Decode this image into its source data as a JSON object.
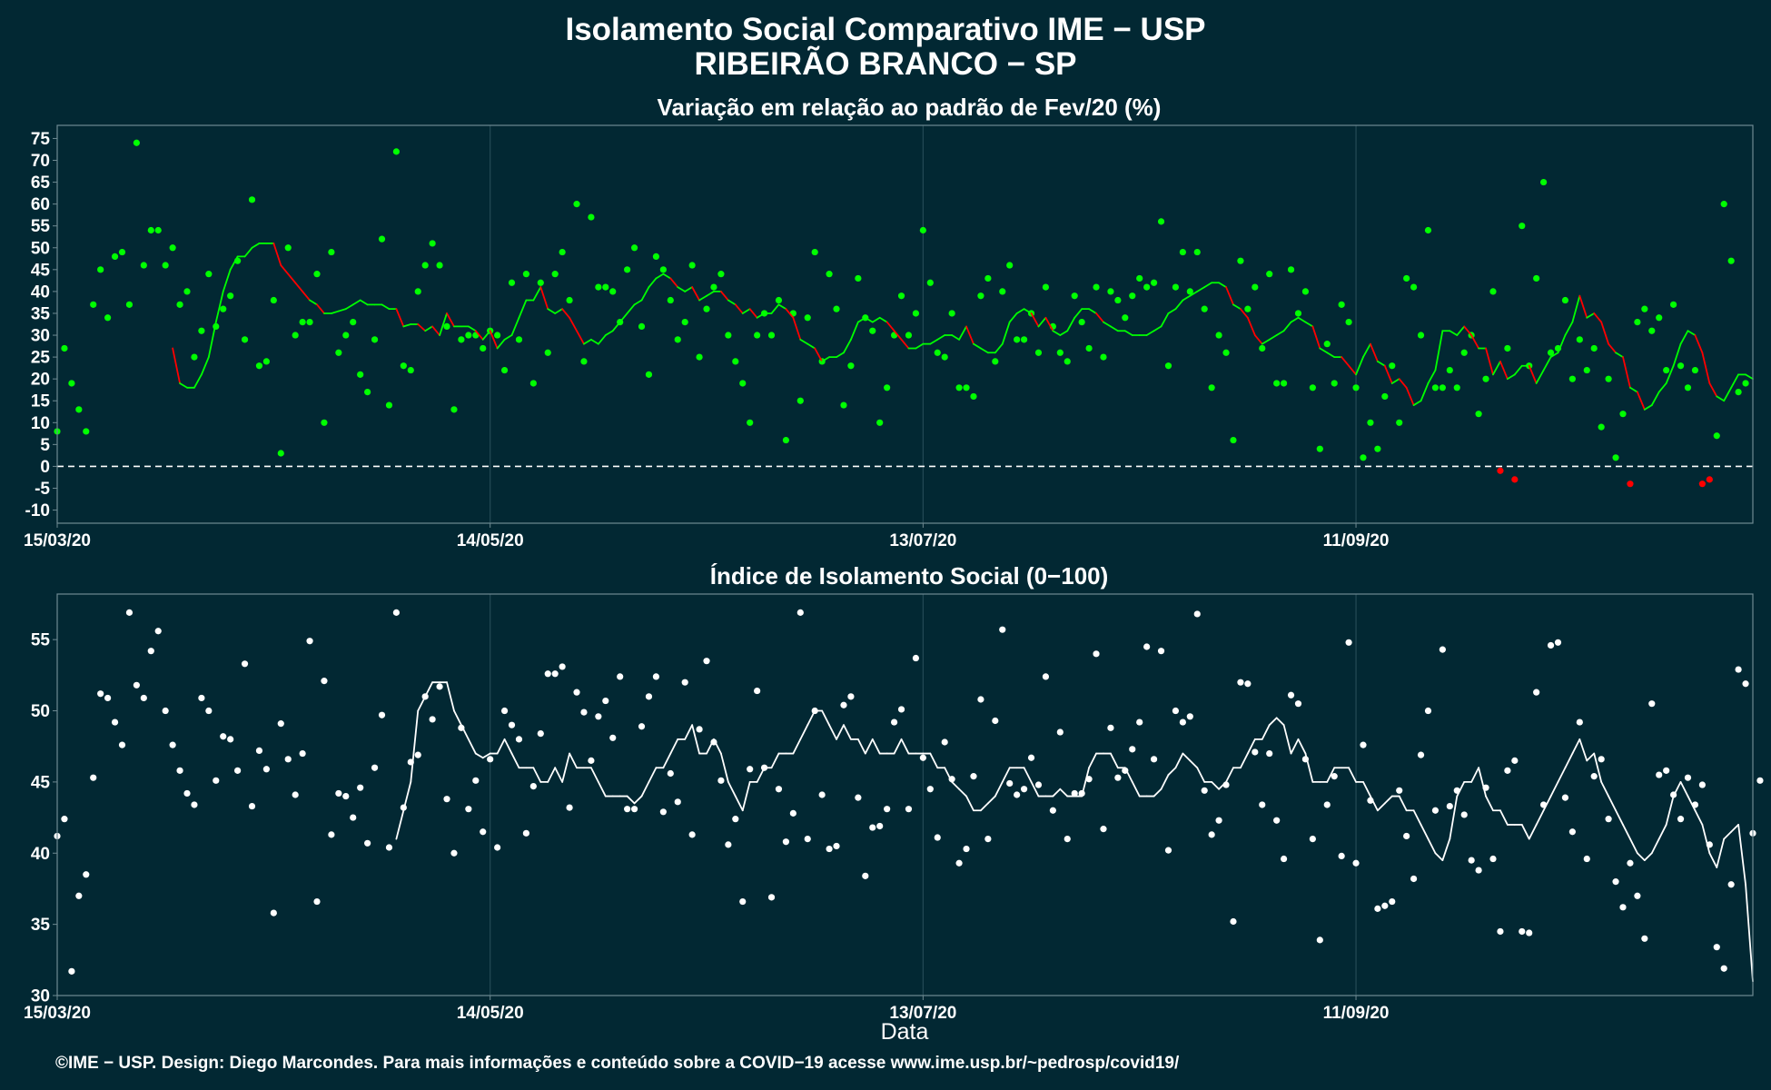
{
  "title_line1": "Isolamento Social Comparativo IME − USP",
  "title_line2": "RIBEIRÃO BRANCO − SP",
  "footer": "©IME − USP. Design: Diego Marcondes. Para mais informações e conteúdo sobre a COVID−19 acesse www.ime.usp.br/~pedrosp/covid19/",
  "colors": {
    "background": "#022833",
    "panel_border": "#6f8a92",
    "grid": "#244a55",
    "positive": "#00ff00",
    "negative": "#ff0000",
    "index_series": "#ffffff"
  },
  "chart_data": [
    {
      "type": "scatter",
      "title": "Variação em relação ao padrão de Fev/20 (%)",
      "xlabel": "",
      "ylabel": "",
      "x_start": "2020-03-15",
      "x_end": "2020-11-05",
      "x_ticks": [
        "15/03/20",
        "14/05/20",
        "13/07/20",
        "11/09/20"
      ],
      "y_ticks": [
        75,
        70,
        65,
        60,
        55,
        50,
        45,
        40,
        35,
        30,
        25,
        20,
        15,
        10,
        5,
        0,
        -5,
        -10
      ],
      "ylim": [
        -13,
        78
      ],
      "reference_line": 0,
      "grid": "vertical only",
      "series": [
        {
          "values": [
            8,
            27,
            19,
            13,
            8,
            37,
            45,
            34,
            48,
            49,
            37,
            74,
            46,
            54,
            54,
            46,
            50,
            37,
            40,
            25,
            31,
            44,
            32,
            36,
            39,
            47,
            29,
            61,
            23,
            24,
            38,
            3,
            50,
            30,
            33,
            33,
            44,
            10,
            49,
            26,
            30,
            33,
            21,
            17,
            29,
            52,
            14,
            72,
            23,
            22,
            40,
            46,
            51,
            46,
            32,
            13,
            29,
            30,
            30,
            27,
            31,
            30,
            22,
            42,
            29,
            44,
            19,
            42,
            26,
            44,
            49,
            38,
            60,
            24,
            57,
            41,
            41,
            40,
            33,
            45,
            50,
            32,
            21,
            48,
            45,
            38,
            29,
            33,
            46,
            25,
            36,
            41,
            44,
            30,
            24,
            19,
            10,
            30,
            35,
            30,
            38,
            6,
            35,
            15,
            34,
            49,
            24,
            44,
            36,
            14,
            23,
            43,
            34,
            31,
            10,
            18,
            30,
            39,
            30,
            35,
            54,
            42,
            26,
            25,
            35,
            18,
            18,
            16,
            39,
            43,
            24,
            40,
            46,
            29,
            29,
            35,
            26,
            41,
            32,
            26,
            24,
            39,
            33,
            27,
            41,
            25,
            40,
            38,
            34,
            39,
            43,
            41,
            42,
            56,
            23,
            41,
            49,
            40,
            49,
            36,
            18,
            30,
            26,
            6,
            47,
            36,
            41,
            27,
            44,
            19,
            19,
            45,
            35,
            40,
            18,
            4,
            28,
            19,
            37,
            33,
            18,
            2,
            10,
            4,
            16,
            23,
            10,
            43,
            41,
            30,
            54,
            18,
            18,
            22,
            18,
            26,
            30,
            12,
            20,
            40,
            -1,
            27,
            -3,
            55,
            23,
            43,
            65,
            26,
            27,
            38,
            20,
            29,
            22,
            27,
            9,
            20,
            2,
            12,
            -4,
            33,
            36,
            31,
            34,
            22,
            37,
            23,
            18,
            22,
            -4,
            -3,
            7,
            60,
            47,
            17,
            19
          ],
          "moving_average": [
            27,
            19,
            18,
            18,
            21,
            25,
            33,
            40,
            45,
            48,
            48,
            50,
            51,
            51,
            51,
            46,
            44,
            42,
            40,
            38,
            37,
            35,
            35,
            35.5,
            36,
            37,
            38,
            37,
            37,
            37,
            36,
            36,
            32,
            32.5,
            32.5,
            31,
            32,
            30,
            35,
            32,
            32,
            32,
            31,
            29,
            31,
            27,
            29,
            30,
            34,
            38,
            38,
            41,
            36,
            35,
            36,
            34,
            31,
            28,
            29,
            28,
            30,
            31,
            33,
            35,
            37,
            38,
            41,
            43,
            44,
            43,
            41,
            40,
            41,
            38,
            39,
            40,
            40,
            38,
            37,
            35,
            36,
            34,
            35,
            35,
            37,
            36,
            34,
            29,
            28,
            27,
            24,
            25,
            25,
            26,
            29,
            33,
            34,
            33,
            34,
            33,
            31,
            29,
            27,
            27,
            28,
            28,
            29,
            30,
            30,
            29,
            32,
            28,
            27,
            26,
            26,
            28,
            33,
            35,
            36,
            35,
            32,
            34,
            31,
            30,
            31,
            34,
            36,
            36,
            35,
            33,
            32,
            31,
            31,
            30,
            30,
            30,
            31,
            32,
            35,
            36,
            38,
            39,
            40,
            41,
            42,
            42,
            41,
            37,
            36,
            34,
            30,
            28,
            29,
            30,
            31,
            33,
            34,
            33,
            32,
            27,
            26,
            25,
            25,
            23,
            21,
            25,
            28,
            24,
            23,
            19,
            20,
            18,
            14,
            15,
            19,
            22,
            31,
            31,
            30,
            32,
            30,
            27,
            27,
            21,
            24,
            20,
            21,
            23,
            23,
            19,
            22,
            25,
            26,
            30,
            33,
            39,
            34,
            35,
            33,
            28,
            26,
            25,
            18,
            17,
            13,
            14,
            17,
            19,
            23,
            28,
            31,
            30,
            26,
            19,
            16,
            15,
            18,
            21,
            21,
            20
          ]
        }
      ]
    },
    {
      "type": "scatter",
      "title": "Índice de Isolamento Social (0−100)",
      "xlabel": "Data",
      "ylabel": "",
      "x_start": "2020-03-15",
      "x_end": "2020-11-05",
      "x_ticks": [
        "15/03/20",
        "14/05/20",
        "13/07/20",
        "11/09/20"
      ],
      "y_ticks": [
        55,
        50,
        45,
        40,
        35,
        30
      ],
      "ylim": [
        30,
        58.2
      ],
      "grid": "vertical only",
      "series": [
        {
          "values": [
            41.2,
            42.4,
            31.7,
            37.0,
            38.5,
            45.3,
            51.2,
            50.9,
            49.2,
            47.6,
            56.9,
            51.8,
            50.9,
            54.2,
            55.6,
            50.0,
            47.6,
            45.8,
            44.2,
            43.4,
            50.9,
            50.0,
            45.1,
            48.2,
            48.0,
            45.8,
            53.3,
            43.3,
            47.2,
            45.9,
            35.8,
            49.1,
            46.6,
            44.1,
            47.0,
            54.9,
            36.6,
            52.1,
            41.3,
            44.2,
            44.0,
            42.5,
            44.6,
            40.7,
            46.0,
            49.7,
            40.4,
            56.9,
            43.2,
            46.4,
            46.9,
            51.0,
            49.4,
            51.7,
            43.8,
            40.0,
            48.8,
            43.1,
            45.1,
            41.5,
            46.6,
            40.4,
            50.0,
            49.0,
            48.0,
            41.4,
            44.7,
            48.4,
            52.6,
            52.6,
            53.1,
            43.2,
            51.3,
            49.9,
            46.5,
            49.6,
            50.7,
            48.1,
            52.4,
            43.1,
            43.1,
            48.9,
            51.0,
            52.4,
            42.9,
            45.6,
            43.6,
            52.0,
            41.3,
            48.7,
            53.5,
            47.8,
            45.1,
            40.6,
            42.4,
            36.6,
            45.9,
            51.4,
            46.0,
            36.9,
            44.5,
            40.8,
            42.8,
            56.9,
            41.0,
            50.0,
            44.1,
            40.3,
            40.5,
            50.4,
            51.0,
            43.9,
            38.4,
            41.8,
            41.9,
            43.1,
            49.2,
            50.1,
            43.1,
            53.7,
            46.7,
            44.5,
            41.1,
            47.8,
            45.2,
            39.3,
            40.3,
            45.4,
            50.8,
            41.0,
            49.3,
            55.7,
            44.9,
            44.1,
            44.5,
            46.7,
            44.8,
            52.4,
            43.0,
            48.5,
            41.0,
            44.2,
            44.2,
            45.2,
            54.0,
            41.7,
            48.8,
            45.3,
            45.8,
            47.3,
            49.2,
            54.5,
            46.6,
            54.2,
            40.2,
            50.0,
            49.2,
            49.6,
            56.8,
            44.4,
            41.3,
            42.3,
            44.8,
            35.2,
            52.0,
            51.9,
            47.1,
            43.4,
            47.0,
            42.3,
            39.6,
            51.1,
            50.5,
            46.6,
            41.0,
            33.9,
            43.4,
            45.4,
            39.8,
            54.8,
            39.3,
            47.6,
            43.7,
            36.1,
            36.3,
            36.6,
            44.4,
            41.2,
            38.2,
            46.9,
            50.0,
            43.0,
            54.3,
            43.3,
            44.4,
            42.7,
            39.5,
            38.8,
            44.6,
            39.6,
            34.5,
            45.8,
            46.5,
            34.5,
            34.4,
            51.3,
            43.4,
            54.6,
            54.8,
            43.9,
            41.5,
            49.2,
            39.6,
            45.4,
            46.6,
            42.4,
            38.0,
            36.2,
            39.3,
            37.0,
            34.0,
            50.5,
            45.5,
            45.8,
            44.1,
            42.4,
            45.3,
            43.4,
            44.8,
            40.6,
            33.4,
            31.9,
            37.8,
            52.9,
            51.9,
            41.4,
            45.1
          ],
          "moving_average": [
            41,
            43,
            45,
            50,
            51,
            52,
            52,
            52,
            50,
            49,
            48,
            47,
            46.7,
            47,
            47,
            48,
            47,
            46,
            46,
            46,
            45,
            45,
            46,
            45,
            47,
            46,
            46,
            46,
            45,
            44,
            44,
            44,
            44,
            43.5,
            44,
            45,
            46,
            46,
            47,
            48,
            48,
            49,
            47,
            47,
            48,
            47,
            45,
            44,
            43,
            45,
            45,
            46,
            46,
            47,
            47,
            47,
            48,
            49,
            50,
            50,
            49,
            48,
            49,
            48,
            48,
            47,
            48,
            47,
            47,
            47,
            48,
            47,
            47,
            47,
            47,
            46,
            46,
            45,
            44.5,
            44,
            43,
            43,
            43.5,
            44,
            45,
            46,
            46,
            46,
            45,
            44,
            44,
            44,
            44.5,
            44,
            44,
            44,
            46,
            47,
            47,
            47,
            46,
            46,
            45,
            44,
            44,
            44,
            44.5,
            45.5,
            46,
            47,
            46.5,
            46,
            45,
            45,
            44.5,
            45,
            46,
            46,
            47,
            48,
            48,
            49,
            49.5,
            49,
            47,
            48,
            47,
            45,
            45,
            45,
            46,
            46,
            46,
            45,
            45,
            44,
            43,
            43.5,
            44,
            44,
            43,
            43,
            42,
            41,
            40,
            39.5,
            41,
            44,
            45,
            45,
            46,
            44,
            43,
            43,
            42,
            42,
            42,
            41,
            42,
            43,
            44,
            45,
            46,
            47,
            48,
            46.5,
            47,
            45,
            44,
            43,
            42,
            41,
            40,
            39.5,
            40,
            41,
            42,
            44,
            45,
            44,
            43,
            42,
            40,
            39,
            41,
            41.5,
            42,
            37.8,
            31
          ]
        }
      ]
    }
  ]
}
